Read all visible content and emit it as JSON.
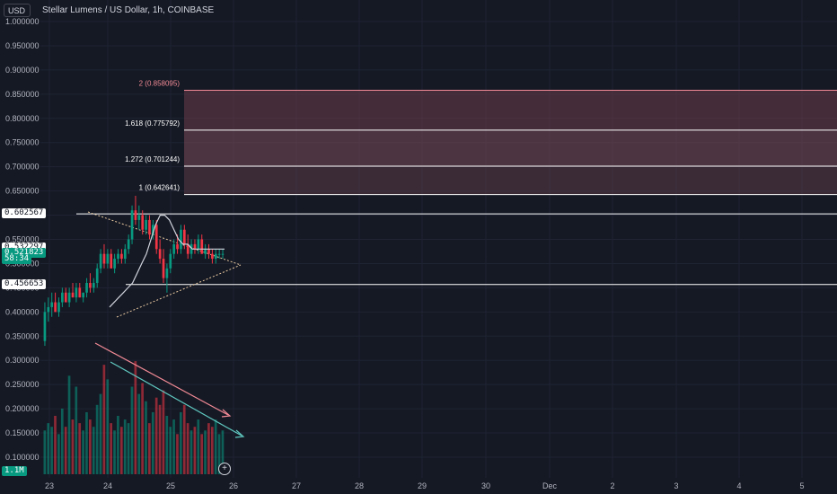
{
  "header": {
    "currency": "USD",
    "symbol_description": "Stellar Lumens / US Dollar, 1h, COINBASE"
  },
  "chart_data": {
    "type": "candlestick",
    "title": "Stellar Lumens / US Dollar, 1h, COINBASE",
    "yticks": [
      "1.000000",
      "0.950000",
      "0.900000",
      "0.850000",
      "0.800000",
      "0.750000",
      "0.700000",
      "0.650000",
      "0.600000",
      "0.550000",
      "0.500000",
      "0.450000",
      "0.400000",
      "0.350000",
      "0.300000",
      "0.250000",
      "0.200000",
      "0.150000",
      "0.100000"
    ],
    "ylim": [
      0.08,
      1.005
    ],
    "xticks": [
      "23",
      "24",
      "25",
      "26",
      "27",
      "28",
      "29",
      "30",
      "Dec",
      "2",
      "3",
      "4",
      "5"
    ],
    "price_tags": [
      {
        "label": "0.602567",
        "value": 0.602567,
        "bg": "#ffffff",
        "fg": "#131722"
      },
      {
        "label": "0.532297",
        "value": 0.532297,
        "bg": "#ffffff",
        "fg": "#131722"
      },
      {
        "label": "0.521823",
        "value": 0.521823,
        "bg": "#089981",
        "fg": "#ffffff"
      },
      {
        "label": "58:34",
        "value": 0.508,
        "bg": "#089981",
        "fg": "#ffffff"
      },
      {
        "label": "0.456653",
        "value": 0.456653,
        "bg": "#ffffff",
        "fg": "#131722"
      }
    ],
    "volume_tag": "1.1M",
    "fib_levels": [
      {
        "label": "2 (0.858095)",
        "value": 0.858095,
        "color": "#f28b96"
      },
      {
        "label": "1.618 (0.775792)",
        "value": 0.775792,
        "color": "#ffffff"
      },
      {
        "label": "1.272 (0.701244)",
        "value": 0.701244,
        "color": "#ffffff"
      },
      {
        "label": "1 (0.642641)",
        "value": 0.642641,
        "color": "#ffffff"
      }
    ],
    "horizontal_lines": [
      0.602567,
      0.456653
    ],
    "candles": [
      [
        0.34,
        0.42,
        0.33,
        0.4
      ],
      [
        0.4,
        0.43,
        0.38,
        0.41
      ],
      [
        0.41,
        0.44,
        0.39,
        0.42
      ],
      [
        0.42,
        0.44,
        0.4,
        0.4
      ],
      [
        0.4,
        0.43,
        0.39,
        0.42
      ],
      [
        0.42,
        0.45,
        0.41,
        0.44
      ],
      [
        0.44,
        0.45,
        0.42,
        0.42
      ],
      [
        0.42,
        0.45,
        0.41,
        0.44
      ],
      [
        0.44,
        0.46,
        0.43,
        0.43
      ],
      [
        0.43,
        0.46,
        0.42,
        0.45
      ],
      [
        0.45,
        0.46,
        0.43,
        0.43
      ],
      [
        0.43,
        0.44,
        0.42,
        0.44
      ],
      [
        0.44,
        0.47,
        0.43,
        0.46
      ],
      [
        0.46,
        0.48,
        0.44,
        0.45
      ],
      [
        0.45,
        0.47,
        0.44,
        0.46
      ],
      [
        0.46,
        0.5,
        0.45,
        0.49
      ],
      [
        0.49,
        0.53,
        0.48,
        0.52
      ],
      [
        0.52,
        0.54,
        0.49,
        0.5
      ],
      [
        0.5,
        0.53,
        0.49,
        0.52
      ],
      [
        0.52,
        0.53,
        0.49,
        0.49
      ],
      [
        0.49,
        0.52,
        0.48,
        0.51
      ],
      [
        0.51,
        0.53,
        0.5,
        0.52
      ],
      [
        0.52,
        0.53,
        0.5,
        0.51
      ],
      [
        0.51,
        0.54,
        0.5,
        0.53
      ],
      [
        0.53,
        0.56,
        0.52,
        0.55
      ],
      [
        0.55,
        0.62,
        0.54,
        0.61
      ],
      [
        0.61,
        0.64,
        0.58,
        0.59
      ],
      [
        0.59,
        0.62,
        0.57,
        0.6
      ],
      [
        0.6,
        0.61,
        0.56,
        0.57
      ],
      [
        0.57,
        0.6,
        0.56,
        0.59
      ],
      [
        0.59,
        0.6,
        0.55,
        0.56
      ],
      [
        0.56,
        0.59,
        0.55,
        0.58
      ],
      [
        0.58,
        0.59,
        0.52,
        0.53
      ],
      [
        0.53,
        0.55,
        0.5,
        0.51
      ],
      [
        0.51,
        0.53,
        0.46,
        0.47
      ],
      [
        0.47,
        0.5,
        0.44,
        0.49
      ],
      [
        0.49,
        0.53,
        0.48,
        0.52
      ],
      [
        0.52,
        0.55,
        0.51,
        0.54
      ],
      [
        0.54,
        0.56,
        0.52,
        0.53
      ],
      [
        0.53,
        0.58,
        0.52,
        0.57
      ],
      [
        0.57,
        0.58,
        0.53,
        0.54
      ],
      [
        0.54,
        0.56,
        0.51,
        0.52
      ],
      [
        0.52,
        0.55,
        0.51,
        0.54
      ],
      [
        0.54,
        0.55,
        0.52,
        0.53
      ],
      [
        0.53,
        0.56,
        0.52,
        0.55
      ],
      [
        0.55,
        0.56,
        0.52,
        0.52
      ],
      [
        0.52,
        0.54,
        0.51,
        0.53
      ],
      [
        0.53,
        0.54,
        0.51,
        0.52
      ],
      [
        0.52,
        0.53,
        0.5,
        0.51
      ],
      [
        0.51,
        0.53,
        0.5,
        0.52
      ],
      [
        0.52,
        0.53,
        0.51,
        0.52
      ],
      [
        0.52,
        0.53,
        0.51,
        0.52
      ]
    ],
    "volumes": [
      0.12,
      0.14,
      0.13,
      0.16,
      0.11,
      0.18,
      0.13,
      0.27,
      0.15,
      0.24,
      0.14,
      0.12,
      0.17,
      0.15,
      0.13,
      0.19,
      0.22,
      0.3,
      0.26,
      0.14,
      0.12,
      0.16,
      0.13,
      0.15,
      0.14,
      0.24,
      0.31,
      0.22,
      0.25,
      0.2,
      0.14,
      0.17,
      0.21,
      0.19,
      0.23,
      0.16,
      0.13,
      0.15,
      0.11,
      0.17,
      0.19,
      0.14,
      0.12,
      0.13,
      0.15,
      0.11,
      0.12,
      0.14,
      0.13,
      0.15,
      0.11,
      0.12
    ],
    "ma_line": [
      0.41,
      0.42,
      0.43,
      0.44,
      0.45,
      0.46,
      0.48,
      0.5,
      0.52,
      0.55,
      0.58,
      0.6,
      0.6,
      0.59,
      0.57,
      0.55,
      0.54,
      0.54,
      0.53,
      0.53,
      0.53,
      0.53,
      0.53,
      0.53,
      0.53,
      0.53
    ]
  },
  "colors": {
    "bull": "#089981",
    "bear": "#f23645",
    "grid": "#1f2433",
    "axis_text": "#b2b5be",
    "fib_fill_top": "#6b3c4a",
    "fib_fill_mid": "#7a4a57",
    "fib_fill_low": "#5a3b47"
  }
}
